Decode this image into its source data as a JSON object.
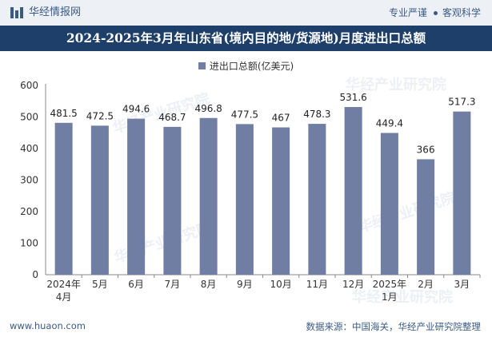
{
  "header": {
    "site_name": "华经情报网",
    "slogan_a": "专业严谨",
    "slogan_b": "客观科学",
    "title": "2024-2025年3月年山东省(境内目的地/货源地)月度进出口总额"
  },
  "footer": {
    "url": "www.huaon.com",
    "source": "数据来源：中国海关，华经产业研究院整理"
  },
  "watermark": "华经产业研究院",
  "colors": {
    "bar": "#6f7ea2",
    "title_bg": "#1f3f6b",
    "topbar_bg": "#edf1f6",
    "brand": "#3a5a86"
  },
  "chart_data": {
    "type": "bar",
    "title": "2024-2025年3月年山东省(境内目的地/货源地)月度进出口总额",
    "legend": "进出口总额(亿美元)",
    "legend_position": "top-center",
    "categories": [
      [
        "2024年",
        "4月"
      ],
      [
        "5月"
      ],
      [
        "6月"
      ],
      [
        "7月"
      ],
      [
        "8月"
      ],
      [
        "9月"
      ],
      [
        "10月"
      ],
      [
        "11月"
      ],
      [
        "12月"
      ],
      [
        "2025年",
        "1月"
      ],
      [
        "2月"
      ],
      [
        "3月"
      ]
    ],
    "values": [
      481.5,
      472.5,
      494.6,
      468.7,
      496.8,
      477.5,
      467,
      478.3,
      531.6,
      449.4,
      366,
      517.3
    ],
    "value_labels": [
      "481.5",
      "472.5",
      "494.6",
      "468.7",
      "496.8",
      "477.5",
      "467",
      "478.3",
      "531.6",
      "449.4",
      "366",
      "517.3"
    ],
    "yticks": [
      0,
      100,
      200,
      300,
      400,
      500,
      600
    ],
    "ylim": [
      0,
      600
    ],
    "xlabel": "",
    "ylabel": "",
    "grid": false
  }
}
